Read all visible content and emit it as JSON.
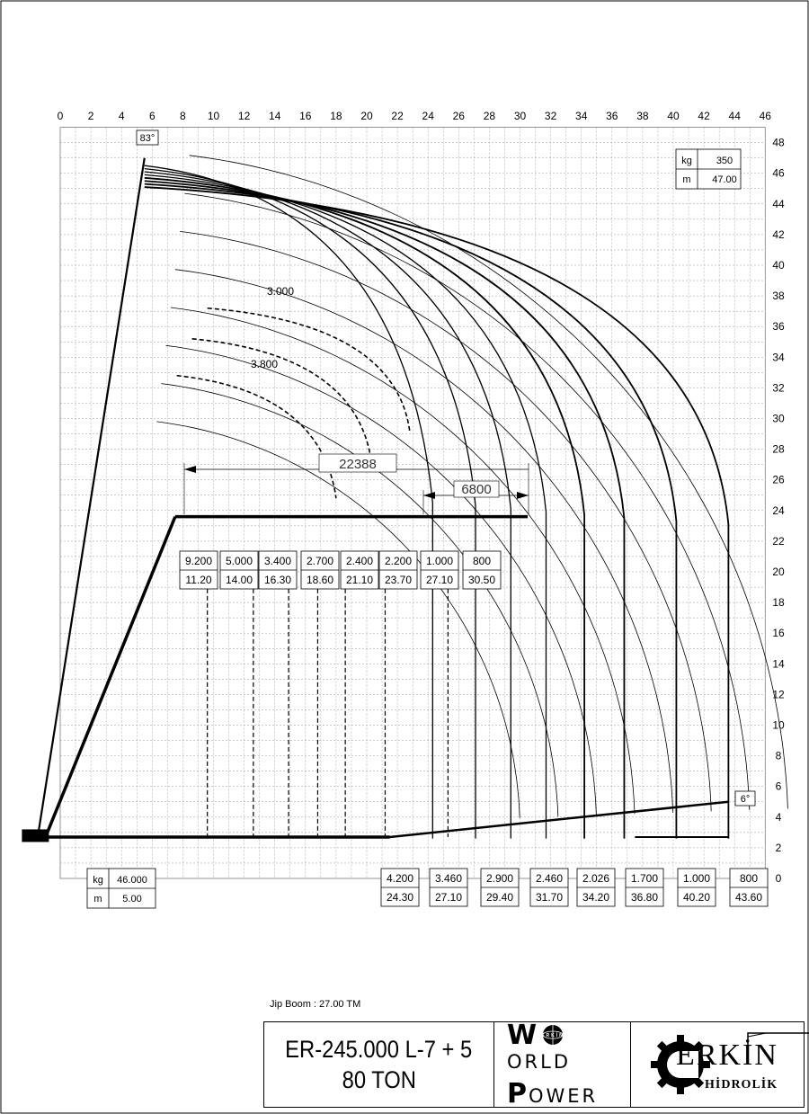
{
  "x_ticks": [
    "0",
    "2",
    "4",
    "6",
    "8",
    "10",
    "12",
    "14",
    "16",
    "18",
    "20",
    "22",
    "24",
    "26",
    "28",
    "30",
    "32",
    "34",
    "36",
    "38",
    "40",
    "42",
    "44",
    "46"
  ],
  "y_ticks": [
    "0",
    "2",
    "4",
    "6",
    "8",
    "10",
    "12",
    "14",
    "16",
    "18",
    "20",
    "22",
    "24",
    "26",
    "28",
    "30",
    "32",
    "34",
    "36",
    "38",
    "40",
    "42",
    "44",
    "46",
    "48"
  ],
  "angle_max": "83°",
  "angle_min": "6°",
  "tip_table": {
    "kg_label": "kg",
    "kg_value": "350",
    "m_label": "m",
    "m_value": "47.00"
  },
  "base_table": {
    "kg_label": "kg",
    "kg_value": "46.000",
    "m_label": "m",
    "m_value": "5.00"
  },
  "jib_loads": [
    {
      "kg": "9.200",
      "m": "11.20"
    },
    {
      "kg": "5.000",
      "m": "14.00"
    },
    {
      "kg": "3.400",
      "m": "16.30"
    },
    {
      "kg": "2.700",
      "m": "18.60"
    },
    {
      "kg": "2.400",
      "m": "21.10"
    },
    {
      "kg": "2.200",
      "m": "23.70"
    },
    {
      "kg": "1.000",
      "m": "27.10"
    },
    {
      "kg": "800",
      "m": "30.50"
    }
  ],
  "bottom_loads": [
    {
      "kg": "4.200",
      "m": "24.30"
    },
    {
      "kg": "3.460",
      "m": "27.10"
    },
    {
      "kg": "2.900",
      "m": "29.40"
    },
    {
      "kg": "2.460",
      "m": "31.70"
    },
    {
      "kg": "2.026",
      "m": "34.20"
    },
    {
      "kg": "1.700",
      "m": "36.80"
    },
    {
      "kg": "1.000",
      "m": "40.20"
    },
    {
      "kg": "800",
      "m": "43.60"
    }
  ],
  "curve_labels": [
    "3.000",
    "3.800"
  ],
  "dimensions": {
    "jib_span": "22388",
    "jib_ext": "6800"
  },
  "jib_note": "Jip Boom : 27.00 TM",
  "model": {
    "line1": "ER-245.000  L-7 + 5",
    "line2": "80 TON"
  },
  "world_power": {
    "w": "W",
    "orld": "ORLD",
    "p": "P",
    "ower": "OWER",
    "globe": "ERKİN"
  },
  "erkin": {
    "word": "ERKİN",
    "sub": "HİDROLİK"
  }
}
